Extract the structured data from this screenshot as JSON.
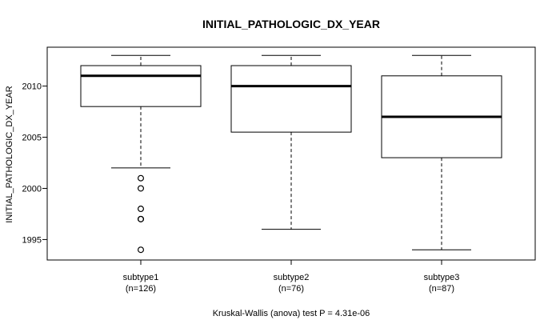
{
  "chart_data": {
    "type": "box",
    "title": "INITIAL_PATHOLOGIC_DX_YEAR",
    "ylabel": "INITIAL_PATHOLOGIC_DX_YEAR",
    "xlabel": "Kruskal-Wallis (anova) test P = 4.31e-06",
    "ylim": [
      1993.0,
      2013.8
    ],
    "yticks": [
      1995,
      2000,
      2005,
      2010
    ],
    "categories": [
      "subtype1",
      "subtype2",
      "subtype3"
    ],
    "sample_counts": [
      "(n=126)",
      "(n=76)",
      "(n=87)"
    ],
    "series": [
      {
        "name": "subtype1",
        "whisker_low": 2002,
        "q1": 2008,
        "median": 2011,
        "q3": 2012,
        "whisker_high": 2013,
        "outliers": [
          2001,
          2000,
          1998,
          1997,
          1997,
          1994
        ]
      },
      {
        "name": "subtype2",
        "whisker_low": 1996,
        "q1": 2005.5,
        "median": 2010,
        "q3": 2012,
        "whisker_high": 2013,
        "outliers": []
      },
      {
        "name": "subtype3",
        "whisker_low": 1994,
        "q1": 2003,
        "median": 2007,
        "q3": 2011,
        "whisker_high": 2013,
        "outliers": []
      }
    ]
  }
}
